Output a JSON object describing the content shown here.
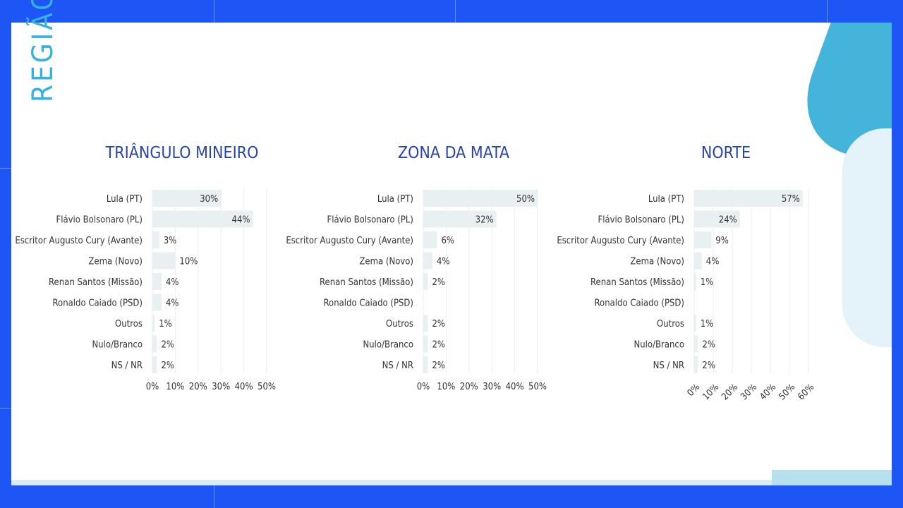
{
  "page": {
    "region_title": "REGIÃO",
    "colors": {
      "background": "#1e55f5",
      "panel": "#ffffff",
      "bar": "#e9f0f1",
      "title": "#2744a8",
      "accent": "#35b0df",
      "grid": "#eeeeee"
    }
  },
  "chart_data": [
    {
      "type": "bar",
      "orientation": "horizontal",
      "title": "TRIÂNGULO MINEIRO",
      "categories": [
        "Lula (PT)",
        "Flávio Bolsonaro (PL)",
        "Escritor Augusto Cury (Avante)",
        "Zema (Novo)",
        "Renan Santos (Missão)",
        "Ronaldo Caiado (PSD)",
        "Outros",
        "Nulo/Branco",
        "NS / NR"
      ],
      "values": [
        30,
        44,
        3,
        10,
        4,
        4,
        1,
        2,
        2
      ],
      "data_labels": [
        "30%",
        "44%",
        "3%",
        "10%",
        "4%",
        "4%",
        "1%",
        "2%",
        "2%"
      ],
      "xlim": [
        0,
        50
      ],
      "xticks": [
        "0%",
        "10%",
        "20%",
        "30%",
        "40%",
        "50%"
      ],
      "grid": true,
      "tick_rotation": 0
    },
    {
      "type": "bar",
      "orientation": "horizontal",
      "title": "ZONA DA MATA",
      "categories": [
        "Lula (PT)",
        "Flávio Bolsonaro (PL)",
        "Escritor Augusto Cury (Avante)",
        "Zema (Novo)",
        "Renan Santos (Missão)",
        "Ronaldo Caiado (PSD)",
        "Outros",
        "Nulo/Branco",
        "NS / NR"
      ],
      "values": [
        50,
        32,
        6,
        4,
        2,
        0,
        2,
        2,
        2
      ],
      "data_labels": [
        "50%",
        "32%",
        "6%",
        "4%",
        "2%",
        "",
        "2%",
        "2%",
        "2%"
      ],
      "xlim": [
        0,
        50
      ],
      "xticks": [
        "0%",
        "10%",
        "20%",
        "30%",
        "40%",
        "50%"
      ],
      "grid": true,
      "tick_rotation": 0
    },
    {
      "type": "bar",
      "orientation": "horizontal",
      "title": "NORTE",
      "categories": [
        "Lula (PT)",
        "Flávio Bolsonaro (PL)",
        "Escritor Augusto Cury (Avante)",
        "Zema (Novo)",
        "Renan Santos (Missão)",
        "Ronaldo Caiado (PSD)",
        "Outros",
        "Nulo/Branco",
        "NS / NR"
      ],
      "values": [
        57,
        24,
        9,
        4,
        1,
        0,
        1,
        2,
        2
      ],
      "data_labels": [
        "57%",
        "24%",
        "9%",
        "4%",
        "1%",
        "",
        "1%",
        "2%",
        "2%"
      ],
      "xlim": [
        0,
        60
      ],
      "xticks": [
        "0%",
        "10%",
        "20%",
        "30%",
        "40%",
        "50%",
        "60%"
      ],
      "grid": true,
      "tick_rotation": -45
    }
  ]
}
